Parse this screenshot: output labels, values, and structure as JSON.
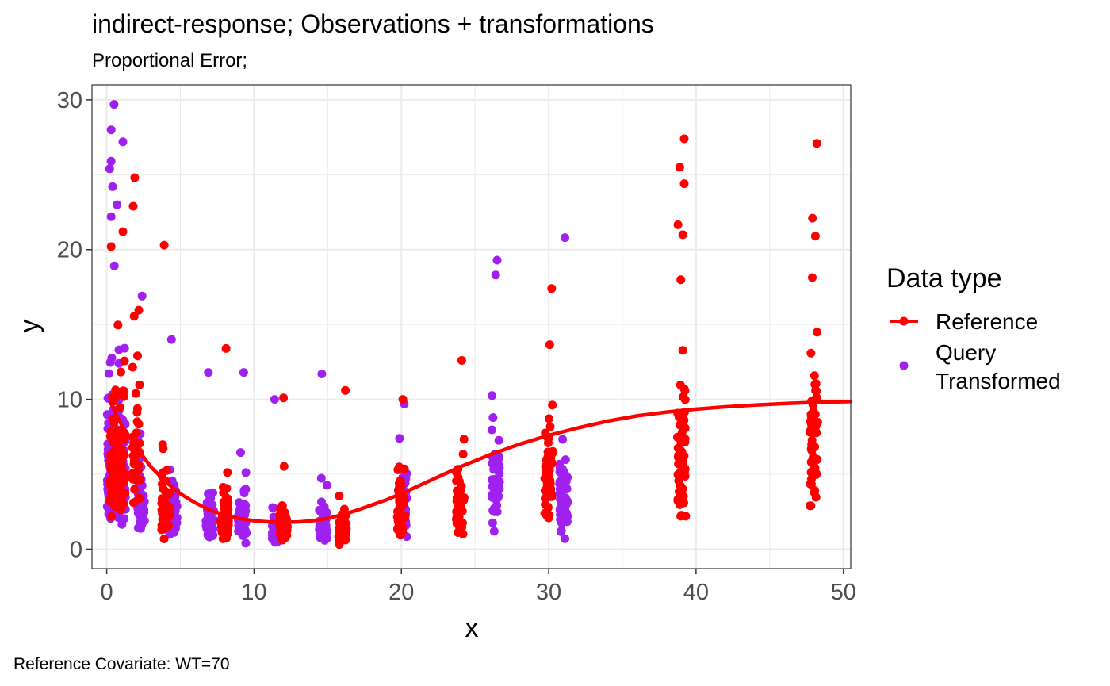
{
  "chart_data": {
    "type": "scatter",
    "title": "indirect-response; Observations + transformations",
    "subtitle": "Proportional Error;",
    "caption": "Reference Covariate: WT=70",
    "xlabel": "x",
    "ylabel": "y",
    "xlim": [
      -1,
      50.5
    ],
    "ylim": [
      -1.3,
      31
    ],
    "x_ticks": [
      0,
      10,
      20,
      30,
      40,
      50
    ],
    "x_tick_labels": [
      "0",
      "10",
      "20",
      "30",
      "40",
      "50"
    ],
    "y_ticks": [
      0,
      10,
      20,
      30
    ],
    "y_tick_labels": [
      "0",
      "10",
      "20",
      "30"
    ],
    "grid": true,
    "theme": "bw",
    "legend": {
      "title": "Data type",
      "position": "right",
      "entries": [
        {
          "label": "Reference",
          "color": "#FF0000",
          "glyph": "line+point"
        },
        {
          "label": "Query Transformed",
          "line1": "Query",
          "line2": "Transformed",
          "color": "#A020F0",
          "glyph": "point"
        }
      ]
    },
    "series": [
      {
        "name": "Reference",
        "color": "#FF0000",
        "point_groups": [
          {
            "x": 0.5,
            "y_min": 1.8,
            "y_max": 21.2,
            "n": 60
          },
          {
            "x": 1.0,
            "y_min": 2.0,
            "y_max": 21.2,
            "n": 45
          },
          {
            "x": 2.0,
            "y_min": 2.3,
            "y_max": 24.8,
            "n": 45
          },
          {
            "x": 4.0,
            "y_min": 0.4,
            "y_max": 20.3,
            "n": 50
          },
          {
            "x": 8.0,
            "y_min": 0.3,
            "y_max": 13.4,
            "n": 60
          },
          {
            "x": 12.0,
            "y_min": 0.3,
            "y_max": 10.1,
            "n": 55
          },
          {
            "x": 16.0,
            "y_min": 0.2,
            "y_max": 10.6,
            "n": 50
          },
          {
            "x": 20.0,
            "y_min": 0.9,
            "y_max": 10.0,
            "n": 45
          },
          {
            "x": 24.0,
            "y_min": 1.0,
            "y_max": 12.6,
            "n": 50
          },
          {
            "x": 30.0,
            "y_min": 1.8,
            "y_max": 17.4,
            "n": 55
          },
          {
            "x": 39.0,
            "y_min": 2.2,
            "y_max": 27.4,
            "n": 55
          },
          {
            "x": 48.0,
            "y_min": 2.9,
            "y_max": 27.1,
            "n": 60
          }
        ],
        "outliers": [
          {
            "x": 0.3,
            "y": 20.2
          },
          {
            "x": 1.1,
            "y": 21.2
          },
          {
            "x": 1.9,
            "y": 24.8
          },
          {
            "x": 1.8,
            "y": 22.9
          },
          {
            "x": 3.9,
            "y": 20.3
          },
          {
            "x": 8.1,
            "y": 13.4
          },
          {
            "x": 12.0,
            "y": 10.1
          },
          {
            "x": 16.2,
            "y": 10.6
          },
          {
            "x": 20.1,
            "y": 10.0
          },
          {
            "x": 24.1,
            "y": 12.6
          },
          {
            "x": 30.2,
            "y": 17.4
          },
          {
            "x": 39.2,
            "y": 27.4
          },
          {
            "x": 38.9,
            "y": 25.5
          },
          {
            "x": 39.2,
            "y": 24.4
          },
          {
            "x": 39.1,
            "y": 21.0
          },
          {
            "x": 48.2,
            "y": 27.1
          },
          {
            "x": 47.9,
            "y": 22.1
          },
          {
            "x": 48.1,
            "y": 20.9
          },
          {
            "x": 47.8,
            "y": 2.9
          },
          {
            "x": 39.3,
            "y": 2.2
          },
          {
            "x": 38.9,
            "y": 3.0
          }
        ],
        "curve": {
          "x": [
            0.25,
            1,
            2,
            3,
            4,
            5,
            6,
            7,
            8,
            9,
            10,
            11,
            12,
            13,
            14,
            15,
            16,
            17,
            18,
            19,
            20,
            22,
            24,
            26,
            28,
            30,
            32,
            34,
            36,
            38,
            40,
            42,
            44,
            46,
            48,
            50.5
          ],
          "y": [
            9.8,
            8.3,
            6.8,
            5.5,
            4.5,
            3.7,
            3.1,
            2.6,
            2.3,
            2.05,
            1.9,
            1.82,
            1.8,
            1.82,
            1.9,
            2.05,
            2.3,
            2.6,
            2.95,
            3.3,
            3.7,
            4.6,
            5.5,
            6.3,
            7.0,
            7.6,
            8.1,
            8.55,
            8.9,
            9.15,
            9.35,
            9.5,
            9.62,
            9.72,
            9.8,
            9.85
          ]
        }
      },
      {
        "name": "Query Transformed",
        "color": "#A020F0",
        "point_groups": [
          {
            "x": 0.3,
            "y_min": 1.2,
            "y_max": 29.7,
            "n": 110
          },
          {
            "x": 1.0,
            "y_min": 1.2,
            "y_max": 27.2,
            "n": 80
          },
          {
            "x": 2.3,
            "y_min": 0.9,
            "y_max": 16.9,
            "n": 50
          },
          {
            "x": 4.5,
            "y_min": 0.5,
            "y_max": 14.0,
            "n": 55
          },
          {
            "x": 7.0,
            "y_min": 0.3,
            "y_max": 11.8,
            "n": 55
          },
          {
            "x": 9.2,
            "y_min": 0.4,
            "y_max": 11.8,
            "n": 50
          },
          {
            "x": 11.5,
            "y_min": 0.2,
            "y_max": 10.0,
            "n": 50
          },
          {
            "x": 14.7,
            "y_min": 0.3,
            "y_max": 11.7,
            "n": 50
          },
          {
            "x": 20.1,
            "y_min": 0.8,
            "y_max": 9.7,
            "n": 45
          },
          {
            "x": 26.4,
            "y_min": 1.2,
            "y_max": 19.3,
            "n": 50
          },
          {
            "x": 31.0,
            "y_min": 0.7,
            "y_max": 20.8,
            "n": 55
          }
        ],
        "outliers": [
          {
            "x": 0.5,
            "y": 29.7
          },
          {
            "x": 0.3,
            "y": 28.0
          },
          {
            "x": 1.1,
            "y": 27.2
          },
          {
            "x": 0.3,
            "y": 25.9
          },
          {
            "x": 0.2,
            "y": 25.4
          },
          {
            "x": 0.4,
            "y": 24.2
          },
          {
            "x": 0.7,
            "y": 23.0
          },
          {
            "x": 0.3,
            "y": 22.2
          },
          {
            "x": 2.4,
            "y": 16.9
          },
          {
            "x": 4.4,
            "y": 14.0
          },
          {
            "x": 6.9,
            "y": 11.8
          },
          {
            "x": 9.3,
            "y": 11.8
          },
          {
            "x": 11.4,
            "y": 10.0
          },
          {
            "x": 14.6,
            "y": 11.7
          },
          {
            "x": 20.2,
            "y": 9.7
          },
          {
            "x": 26.5,
            "y": 19.3
          },
          {
            "x": 26.4,
            "y": 18.3
          },
          {
            "x": 31.1,
            "y": 20.8
          },
          {
            "x": 31.1,
            "y": 0.7
          },
          {
            "x": 26.3,
            "y": 1.2
          }
        ]
      }
    ]
  }
}
